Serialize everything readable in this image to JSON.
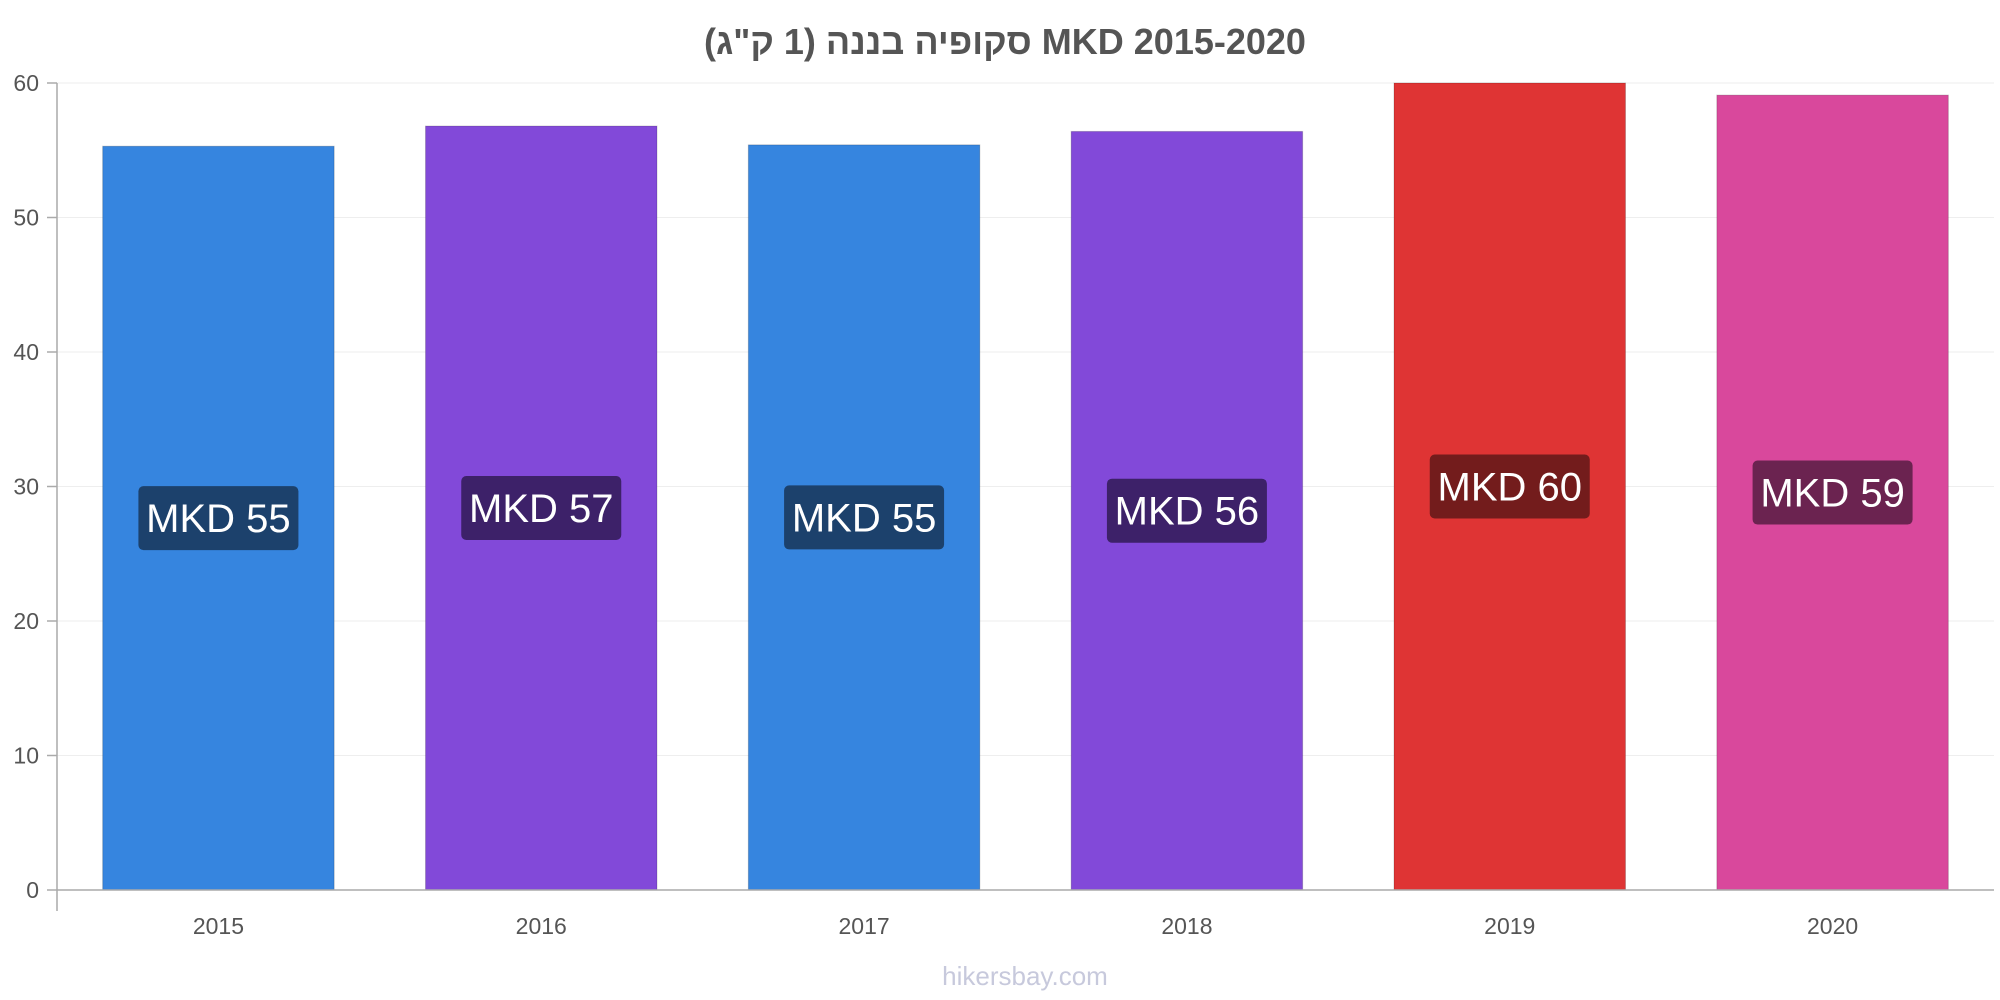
{
  "chart_data": {
    "type": "bar",
    "title": "סקופיה בננה (1 ק\"ג) MKD 2015-2020",
    "categories": [
      "2015",
      "2016",
      "2017",
      "2018",
      "2019",
      "2020"
    ],
    "values": [
      55.3,
      56.8,
      55.4,
      56.4,
      60.0,
      59.1
    ],
    "data_labels": [
      "MKD 55",
      "MKD 57",
      "MKD 55",
      "MKD 56",
      "MKD 60",
      "MKD 59"
    ],
    "bar_colors": [
      "#3685df",
      "#8249d9",
      "#3685df",
      "#8249d9",
      "#df3434",
      "#d9489c"
    ],
    "label_bg_colors": [
      "#1c416c",
      "#3d2169",
      "#1c416c",
      "#3d2169",
      "#731c1c",
      "#6b2350"
    ],
    "xlabel": "",
    "ylabel": "",
    "ylim": [
      0,
      60
    ],
    "yticks": [
      0,
      10,
      20,
      30,
      40,
      50,
      60
    ],
    "grid": true,
    "legend": "none"
  },
  "watermark": "hikersbay.com"
}
